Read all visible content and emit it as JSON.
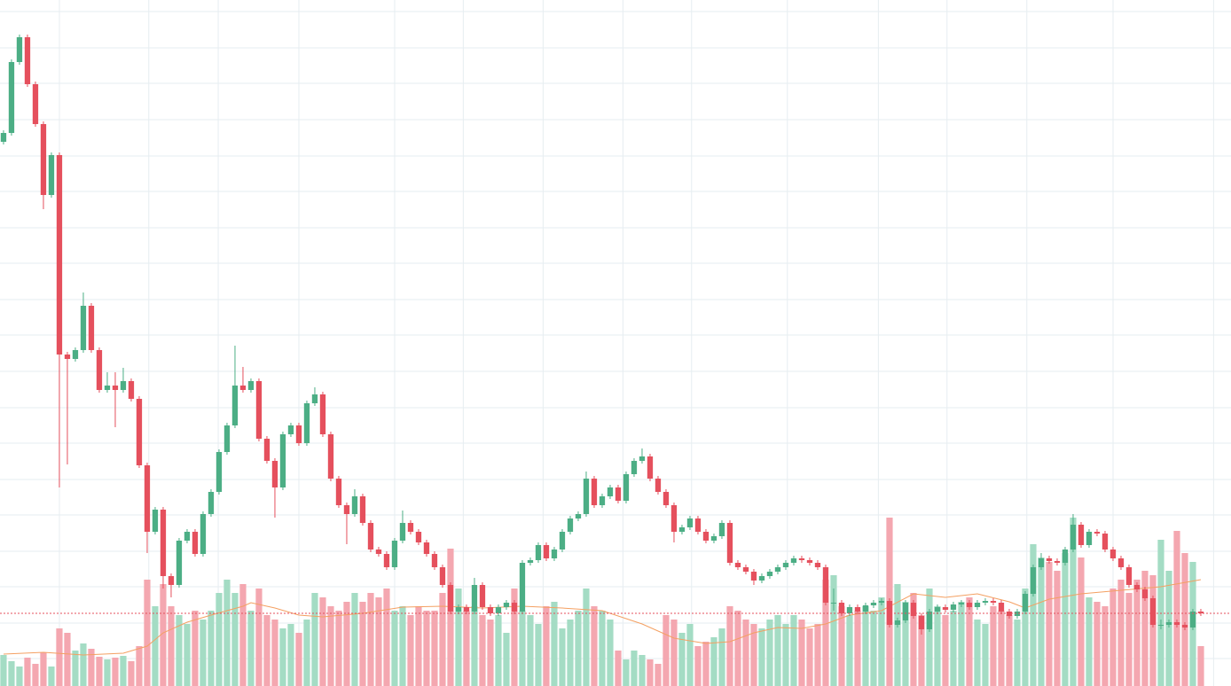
{
  "chart_data": {
    "type": "candlestick",
    "xlim": [
      -0.44,
      153.78
    ],
    "ylim": [
      0,
      774
    ],
    "volume_ylim": [
      0,
      774
    ],
    "up_color": "#4cae85",
    "down_color": "#e5505d",
    "volume_up_color": "#a4dcc4",
    "volume_down_color": "#f4a7b0",
    "ma_color": "#f4a062",
    "grid": true,
    "price_line": true,
    "x_grid": [
      7,
      18.2,
      26.9,
      37,
      49,
      57.6,
      67.6,
      77.6,
      86.2,
      98.2,
      109.6,
      118.2,
      128.2,
      139,
      151.6
    ],
    "y_grid": [
      761,
      720,
      680,
      639,
      598,
      558,
      517,
      477,
      436,
      396,
      355,
      314,
      274,
      233,
      193,
      152,
      112,
      71,
      31
    ],
    "candles": [
      [
        614,
        627,
        611,
        624
      ],
      [
        624,
        707,
        621,
        704
      ],
      [
        704,
        735,
        701,
        732
      ],
      [
        732,
        735,
        676,
        679
      ],
      [
        679,
        682,
        631,
        634
      ],
      [
        634,
        637,
        538,
        554
      ],
      [
        554,
        602,
        551,
        599
      ],
      [
        599,
        602,
        224,
        374
      ],
      [
        374,
        377,
        250,
        369
      ],
      [
        369,
        382,
        366,
        379
      ],
      [
        379,
        444,
        376,
        429
      ],
      [
        429,
        432,
        376,
        379
      ],
      [
        379,
        382,
        331,
        334
      ],
      [
        334,
        354,
        331,
        339
      ],
      [
        339,
        354,
        292,
        334
      ],
      [
        334,
        359,
        331,
        344
      ],
      [
        344,
        347,
        321,
        324
      ],
      [
        324,
        327,
        246,
        249
      ],
      [
        249,
        252,
        150,
        174
      ],
      [
        174,
        202,
        171,
        199
      ],
      [
        199,
        202,
        110,
        124
      ],
      [
        124,
        127,
        100,
        114
      ],
      [
        114,
        167,
        111,
        164
      ],
      [
        164,
        177,
        161,
        174
      ],
      [
        174,
        177,
        146,
        149
      ],
      [
        149,
        197,
        146,
        194
      ],
      [
        194,
        222,
        191,
        219
      ],
      [
        219,
        267,
        216,
        264
      ],
      [
        264,
        297,
        261,
        294
      ],
      [
        294,
        384,
        291,
        339
      ],
      [
        339,
        360,
        331,
        334
      ],
      [
        334,
        347,
        331,
        344
      ],
      [
        344,
        347,
        276,
        279
      ],
      [
        279,
        282,
        251,
        254
      ],
      [
        254,
        257,
        190,
        224
      ],
      [
        224,
        287,
        221,
        284
      ],
      [
        284,
        297,
        281,
        294
      ],
      [
        294,
        297,
        271,
        274
      ],
      [
        274,
        322,
        271,
        319
      ],
      [
        319,
        337,
        316,
        329
      ],
      [
        329,
        332,
        281,
        284
      ],
      [
        284,
        287,
        231,
        234
      ],
      [
        234,
        237,
        201,
        204
      ],
      [
        204,
        207,
        160,
        194
      ],
      [
        194,
        222,
        191,
        214
      ],
      [
        214,
        217,
        181,
        184
      ],
      [
        184,
        187,
        151,
        154
      ],
      [
        154,
        157,
        146,
        149
      ],
      [
        149,
        152,
        131,
        134
      ],
      [
        134,
        167,
        131,
        164
      ],
      [
        164,
        198,
        161,
        184
      ],
      [
        184,
        187,
        171,
        174
      ],
      [
        174,
        177,
        159,
        162
      ],
      [
        162,
        165,
        146,
        149
      ],
      [
        149,
        152,
        131,
        134
      ],
      [
        134,
        137,
        111,
        114
      ],
      [
        114,
        117,
        81,
        84
      ],
      [
        84,
        92,
        81,
        89
      ],
      [
        89,
        92,
        81,
        84
      ],
      [
        84,
        122,
        81,
        114
      ],
      [
        114,
        117,
        86,
        89
      ],
      [
        89,
        92,
        79,
        82
      ],
      [
        82,
        92,
        79,
        89
      ],
      [
        89,
        97,
        86,
        94
      ],
      [
        94,
        97,
        81,
        84
      ],
      [
        84,
        142,
        81,
        139
      ],
      [
        139,
        145,
        136,
        142
      ],
      [
        142,
        162,
        139,
        159
      ],
      [
        159,
        162,
        141,
        144
      ],
      [
        144,
        157,
        141,
        154
      ],
      [
        154,
        177,
        151,
        174
      ],
      [
        174,
        192,
        171,
        189
      ],
      [
        189,
        197,
        186,
        194
      ],
      [
        194,
        242,
        191,
        234
      ],
      [
        234,
        237,
        201,
        204
      ],
      [
        204,
        217,
        201,
        214
      ],
      [
        214,
        227,
        211,
        224
      ],
      [
        224,
        227,
        206,
        209
      ],
      [
        209,
        242,
        206,
        239
      ],
      [
        239,
        257,
        236,
        254
      ],
      [
        254,
        268,
        251,
        259
      ],
      [
        259,
        262,
        231,
        234
      ],
      [
        234,
        237,
        216,
        219
      ],
      [
        219,
        222,
        201,
        204
      ],
      [
        204,
        207,
        162,
        174
      ],
      [
        174,
        182,
        171,
        179
      ],
      [
        179,
        192,
        176,
        189
      ],
      [
        189,
        192,
        171,
        174
      ],
      [
        174,
        177,
        161,
        164
      ],
      [
        164,
        172,
        161,
        169
      ],
      [
        169,
        187,
        166,
        184
      ],
      [
        184,
        187,
        136,
        139
      ],
      [
        139,
        142,
        131,
        134
      ],
      [
        134,
        137,
        126,
        129
      ],
      [
        129,
        132,
        114,
        119
      ],
      [
        119,
        127,
        116,
        124
      ],
      [
        124,
        132,
        121,
        129
      ],
      [
        129,
        137,
        126,
        134
      ],
      [
        134,
        142,
        131,
        139
      ],
      [
        139,
        147,
        136,
        144
      ],
      [
        144,
        147,
        139,
        142
      ],
      [
        142,
        145,
        136,
        139
      ],
      [
        139,
        142,
        131,
        134
      ],
      [
        134,
        137,
        91,
        94
      ],
      [
        94,
        110,
        85,
        94
      ],
      [
        94,
        97,
        79,
        82
      ],
      [
        82,
        92,
        79,
        89
      ],
      [
        89,
        92,
        81,
        84
      ],
      [
        84,
        94,
        81,
        91
      ],
      [
        91,
        97,
        88,
        94
      ],
      [
        94,
        99,
        91,
        96
      ],
      [
        96,
        99,
        66,
        69
      ],
      [
        69,
        77,
        66,
        74
      ],
      [
        74,
        97,
        71,
        94
      ],
      [
        94,
        97,
        76,
        79
      ],
      [
        79,
        82,
        58,
        64
      ],
      [
        64,
        87,
        61,
        84
      ],
      [
        84,
        92,
        81,
        89
      ],
      [
        89,
        92,
        83,
        86
      ],
      [
        86,
        95,
        83,
        92
      ],
      [
        92,
        97,
        89,
        94
      ],
      [
        94,
        97,
        86,
        89
      ],
      [
        89,
        97,
        86,
        94
      ],
      [
        94,
        99,
        91,
        96
      ],
      [
        96,
        99,
        91,
        94
      ],
      [
        94,
        97,
        81,
        84
      ],
      [
        84,
        87,
        76,
        79
      ],
      [
        79,
        87,
        76,
        84
      ],
      [
        84,
        107,
        81,
        104
      ],
      [
        104,
        137,
        101,
        134
      ],
      [
        134,
        150,
        131,
        144
      ],
      [
        144,
        147,
        138,
        141
      ],
      [
        141,
        144,
        136,
        139
      ],
      [
        139,
        157,
        136,
        154
      ],
      [
        154,
        194,
        151,
        182
      ],
      [
        182,
        185,
        156,
        159
      ],
      [
        159,
        177,
        156,
        174
      ],
      [
        174,
        177,
        169,
        172
      ],
      [
        172,
        175,
        151,
        154
      ],
      [
        154,
        157,
        141,
        144
      ],
      [
        144,
        147,
        131,
        134
      ],
      [
        134,
        137,
        111,
        114
      ],
      [
        114,
        117,
        106,
        109
      ],
      [
        109,
        112,
        96,
        99
      ],
      [
        99,
        102,
        66,
        69
      ],
      [
        69,
        75,
        64,
        69
      ],
      [
        69,
        75,
        66,
        72
      ],
      [
        72,
        75,
        66,
        69
      ],
      [
        69,
        72,
        63,
        66
      ],
      [
        66,
        87,
        63,
        84
      ],
      [
        84,
        87,
        79,
        82
      ]
    ],
    "volume": [
      35,
      28,
      22,
      32,
      25,
      38,
      22,
      65,
      60,
      40,
      48,
      42,
      33,
      30,
      32,
      34,
      28,
      45,
      120,
      90,
      115,
      90,
      80,
      70,
      85,
      75,
      85,
      105,
      120,
      105,
      115,
      85,
      110,
      80,
      75,
      65,
      70,
      60,
      75,
      105,
      100,
      90,
      85,
      95,
      105,
      95,
      105,
      100,
      110,
      85,
      90,
      80,
      90,
      85,
      85,
      105,
      155,
      110,
      85,
      90,
      80,
      75,
      80,
      60,
      110,
      85,
      80,
      70,
      90,
      95,
      65,
      75,
      85,
      110,
      90,
      85,
      75,
      40,
      30,
      40,
      35,
      30,
      25,
      80,
      75,
      60,
      70,
      45,
      50,
      55,
      65,
      90,
      85,
      75,
      70,
      65,
      75,
      80,
      70,
      80,
      75,
      65,
      70,
      120,
      125,
      90,
      80,
      85,
      90,
      85,
      100,
      190,
      115,
      95,
      105,
      80,
      110,
      90,
      80,
      85,
      95,
      100,
      75,
      70,
      90,
      85,
      80,
      75,
      110,
      160,
      145,
      140,
      130,
      150,
      190,
      145,
      100,
      95,
      90,
      110,
      120,
      105,
      120,
      130,
      125,
      165,
      130,
      175,
      150,
      140,
      45
    ],
    "ma": {
      "x": [
        0,
        5,
        10,
        15,
        18,
        20,
        23,
        26,
        30,
        31,
        34,
        37,
        40,
        45,
        50,
        55,
        60,
        65,
        70,
        75,
        80,
        84,
        88,
        91,
        94,
        97,
        100,
        103,
        106,
        110,
        114,
        118,
        122,
        126,
        128,
        131,
        135,
        140,
        145,
        150
      ],
      "values": [
        36,
        38,
        35,
        37,
        45,
        60,
        72,
        80,
        90,
        94,
        88,
        80,
        78,
        82,
        89,
        90,
        88,
        90,
        88,
        85,
        70,
        54,
        48,
        50,
        60,
        66,
        65,
        70,
        80,
        85,
        104,
        100,
        104,
        95,
        88,
        98,
        104,
        108,
        112,
        120
      ]
    }
  }
}
